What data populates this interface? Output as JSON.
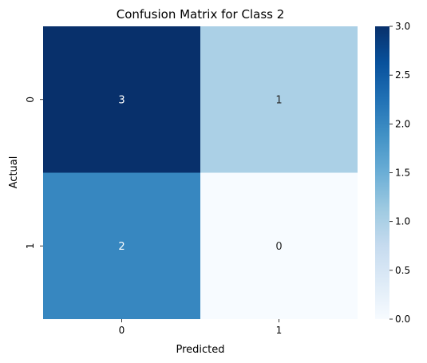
{
  "chart_data": {
    "type": "heatmap",
    "title": "Confusion Matrix for Class 2",
    "xlabel": "Predicted",
    "ylabel": "Actual",
    "x_categories": [
      "0",
      "1"
    ],
    "y_categories": [
      "0",
      "1"
    ],
    "values": [
      [
        3,
        1
      ],
      [
        2,
        0
      ]
    ],
    "colormap": "Blues",
    "color_range": [
      0.0,
      3.0
    ],
    "colorbar_ticks": [
      "0.0",
      "0.5",
      "1.0",
      "1.5",
      "2.0",
      "2.5",
      "3.0"
    ],
    "annotated": true,
    "grid": false,
    "colorbar": "right"
  }
}
